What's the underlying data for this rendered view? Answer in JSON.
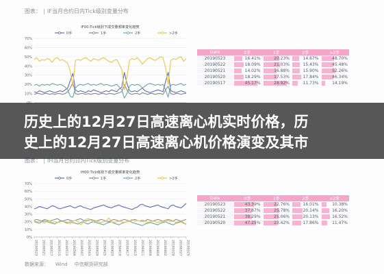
{
  "top_panel": {
    "header": {
      "label": "图表：",
      "title": "IF当月合约日内Tick级别变量分布"
    },
    "chart_data": {
      "type": "line",
      "title": "IF00:Tick级别下成交量频率变化趋势",
      "ylim": [
        0,
        70
      ],
      "yticks": [
        "70%",
        "60%",
        "50%",
        "40%",
        "30%",
        "20%",
        "10%",
        "0%"
      ],
      "x": [
        0,
        1,
        2,
        3,
        4,
        5,
        6,
        7,
        8,
        9,
        10,
        11,
        12,
        13,
        14,
        15,
        16,
        17,
        18,
        19,
        20,
        21,
        22,
        23,
        24,
        25,
        26,
        27,
        28,
        29,
        30,
        31,
        32,
        33,
        34,
        35,
        36,
        37,
        38,
        39,
        40,
        41,
        42,
        43,
        44,
        45,
        46,
        47,
        48,
        49,
        50,
        51,
        52,
        53,
        54,
        55,
        56,
        57,
        58,
        59
      ],
      "series": [
        {
          "name": "0手",
          "color": "#5b6fb0",
          "values": [
            12,
            11,
            13,
            12,
            11,
            12,
            13,
            12,
            11,
            12,
            13,
            12,
            14,
            16,
            24,
            32,
            14,
            12,
            13,
            12,
            11,
            13,
            12,
            14,
            13,
            12,
            11,
            12,
            13,
            12,
            14,
            13,
            12,
            15,
            17,
            33,
            21,
            13,
            12,
            13,
            12,
            14,
            16,
            13,
            12,
            11,
            12,
            13,
            14,
            13,
            12,
            23,
            33,
            13,
            12,
            11,
            12,
            13,
            12,
            11
          ]
        },
        {
          "name": "1手",
          "color": "#8a8a8a",
          "values": [
            9,
            10,
            10,
            9,
            10,
            10,
            9,
            10,
            9,
            10,
            10,
            9,
            10,
            12,
            16,
            22,
            10,
            9,
            10,
            10,
            9,
            10,
            9,
            10,
            10,
            9,
            10,
            10,
            9,
            10,
            10,
            9,
            10,
            11,
            12,
            20,
            14,
            10,
            9,
            10,
            10,
            9,
            11,
            10,
            9,
            10,
            10,
            9,
            10,
            10,
            9,
            14,
            18,
            10,
            9,
            10,
            10,
            9,
            10,
            10
          ]
        },
        {
          "name": "2手",
          "color": "#6aa6a0",
          "values": [
            19,
            20,
            18,
            20,
            19,
            20,
            19,
            21,
            20,
            19,
            20,
            19,
            17,
            14,
            7,
            6,
            16,
            19,
            20,
            19,
            20,
            21,
            19,
            20,
            19,
            20,
            21,
            19,
            20,
            19,
            18,
            19,
            20,
            17,
            14,
            5,
            10,
            18,
            20,
            19,
            20,
            19,
            16,
            18,
            20,
            21,
            20,
            19,
            20,
            19,
            20,
            14,
            6,
            19,
            20,
            19,
            20,
            21,
            19,
            20
          ]
        },
        {
          "name": ">2手",
          "color": "#e8c44a",
          "values": [
            47,
            49,
            45,
            47,
            46,
            48,
            47,
            44,
            48,
            49,
            46,
            47,
            45,
            43,
            34,
            18,
            46,
            47,
            46,
            48,
            49,
            47,
            45,
            48,
            47,
            46,
            48,
            49,
            47,
            45,
            44,
            46,
            47,
            42,
            36,
            14,
            28,
            46,
            48,
            47,
            49,
            46,
            42,
            45,
            48,
            49,
            47,
            46,
            48,
            50,
            49,
            38,
            20,
            46,
            48,
            47,
            49,
            50,
            45,
            48
          ]
        }
      ]
    },
    "table": {
      "headers": [
        "Date",
        "0手",
        "1手",
        "2手",
        ">2手"
      ],
      "rows": [
        [
          "20190523",
          "16.41%",
          "20.23%",
          "14.67%",
          "48.70%"
        ],
        [
          "20190522",
          "18.09%",
          "21.03%",
          "15.43%",
          "45.48%"
        ],
        [
          "20190521",
          "14.02%",
          "16.88%",
          "15.90%",
          "52.26%"
        ],
        [
          "20190520",
          "18.29%",
          "17.53%",
          "17.84%",
          "46.34%"
        ],
        [
          "20190517",
          "45.17%",
          "28.92%",
          "11.73%",
          "14.19%"
        ]
      ],
      "bar_fraction": [
        [
          0.36,
          0.7,
          0.3,
          0.55
        ],
        [
          0.4,
          0.73,
          0.32,
          0.5
        ],
        [
          0.31,
          0.58,
          0.33,
          0.6
        ],
        [
          0.4,
          0.61,
          0.37,
          0.52
        ],
        [
          1.0,
          1.0,
          0.24,
          0.16
        ]
      ]
    }
  },
  "banner": {
    "line1": "历史上的12月27日高速离心机实时价格，历",
    "line2": "史上的12月27日高速离心机价格演变及其市"
  },
  "bottom_panel": {
    "header": {
      "label": "图表：",
      "title": "IH当月合约日内Tick级别变量分布"
    },
    "chart_data": {
      "type": "line",
      "title": "IH00:Tick级别下成交量频率变化趋势",
      "ylim": [
        0,
        70
      ],
      "yticks": [
        "70%",
        "60%",
        "50%",
        "40%",
        "30%",
        "20%",
        "10%",
        "0%"
      ],
      "xticks": [
        "20190523",
        "20190521",
        "20190517",
        "20190515",
        "20190513",
        "20190509",
        "20190507",
        "20190503",
        "20190429",
        "20190425",
        "20190423",
        "20190419",
        "20190417",
        "20190415",
        "20190411",
        "20190409",
        "20190404",
        "20190402",
        "20190329",
        "20190327",
        "20190325"
      ],
      "x": [
        0,
        1,
        2,
        3,
        4,
        5,
        6,
        7,
        8,
        9,
        10,
        11,
        12,
        13,
        14,
        15,
        16,
        17,
        18,
        19,
        20,
        21,
        22,
        23,
        24,
        25,
        26,
        27,
        28,
        29,
        30,
        31,
        32,
        33,
        34,
        35,
        36,
        37,
        38,
        39,
        40,
        41,
        42,
        43,
        44,
        45,
        46,
        47,
        48,
        49,
        50,
        51,
        52,
        53,
        54,
        55,
        56,
        57,
        58,
        59
      ],
      "series": [
        {
          "name": "0手",
          "color": "#5b6fb0",
          "values": [
            37,
            38,
            40,
            39,
            38,
            37,
            39,
            41,
            40,
            38,
            37,
            38,
            39,
            40,
            41,
            39,
            38,
            40,
            41,
            39,
            38,
            37,
            36,
            38,
            39,
            40,
            41,
            42,
            40,
            39,
            38,
            40,
            41,
            42,
            40,
            39,
            38,
            37,
            36,
            38,
            39,
            42,
            43,
            41,
            40,
            39,
            40,
            41,
            42,
            40,
            39,
            38,
            37,
            41,
            42,
            40,
            39,
            38,
            41,
            44
          ]
        },
        {
          "name": "1手",
          "color": "#8a8a8a",
          "values": [
            22,
            23,
            22,
            21,
            23,
            22,
            21,
            22,
            23,
            24,
            22,
            21,
            22,
            23,
            22,
            21,
            22,
            23,
            24,
            22,
            21,
            22,
            23,
            22,
            21,
            22,
            23,
            22,
            21,
            20,
            22,
            23,
            22,
            21,
            22,
            23,
            22,
            21,
            22,
            23,
            22,
            21,
            22,
            21,
            23,
            22,
            21,
            22,
            23,
            22,
            21,
            22,
            23,
            22,
            21,
            23,
            22,
            21,
            22,
            23
          ]
        },
        {
          "name": "2手",
          "color": "#6aa6a0",
          "values": [
            20,
            19,
            18,
            20,
            21,
            20,
            19,
            18,
            17,
            19,
            20,
            21,
            19,
            18,
            20,
            19,
            18,
            17,
            19,
            20,
            18,
            17,
            19,
            20,
            19,
            18,
            17,
            16,
            18,
            19,
            20,
            18,
            17,
            16,
            18,
            19,
            20,
            21,
            19,
            18,
            17,
            16,
            15,
            17,
            18,
            19,
            18,
            17,
            16,
            18,
            19,
            20,
            18,
            17,
            16,
            18,
            19,
            20,
            18,
            17
          ]
        },
        {
          "name": ">2手",
          "color": "#e8c44a",
          "values": [
            21,
            20,
            20,
            20,
            18,
            21,
            21,
            19,
            20,
            19,
            21,
            20,
            20,
            19,
            17,
            21,
            22,
            20,
            16,
            19,
            23,
            24,
            22,
            20,
            21,
            20,
            19,
            20,
            21,
            25,
            20,
            19,
            20,
            21,
            20,
            19,
            20,
            21,
            23,
            21,
            22,
            21,
            20,
            21,
            19,
            20,
            21,
            20,
            19,
            20,
            21,
            20,
            22,
            20,
            21,
            19,
            20,
            21,
            19,
            16
          ]
        }
      ]
    },
    "table": {
      "headers": [
        "Date",
        "0手",
        "1手",
        "2手",
        ">2手"
      ],
      "rows": [
        [
          "20190523",
          "43.39%",
          "22.76%",
          "16.01%",
          "10.38%"
        ],
        [
          "20190522",
          "37.87%",
          "25.78%",
          "20.14%",
          "16.20%"
        ],
        [
          "20190521",
          "38.29%",
          "25.06%",
          "20.13%",
          "16.52%"
        ],
        [
          "20190520",
          "47.25%",
          "23.42%",
          "17.86%",
          "11.47%"
        ]
      ],
      "bar_fraction": [
        [
          0.86,
          0.6,
          0.35,
          0.22
        ],
        [
          0.75,
          0.68,
          0.44,
          0.35
        ],
        [
          0.76,
          0.66,
          0.44,
          0.36
        ],
        [
          0.94,
          0.62,
          0.39,
          0.25
        ]
      ]
    }
  },
  "source": {
    "label": "数据来源：",
    "vendor": "Wind",
    "org": "中信期货研究部"
  }
}
